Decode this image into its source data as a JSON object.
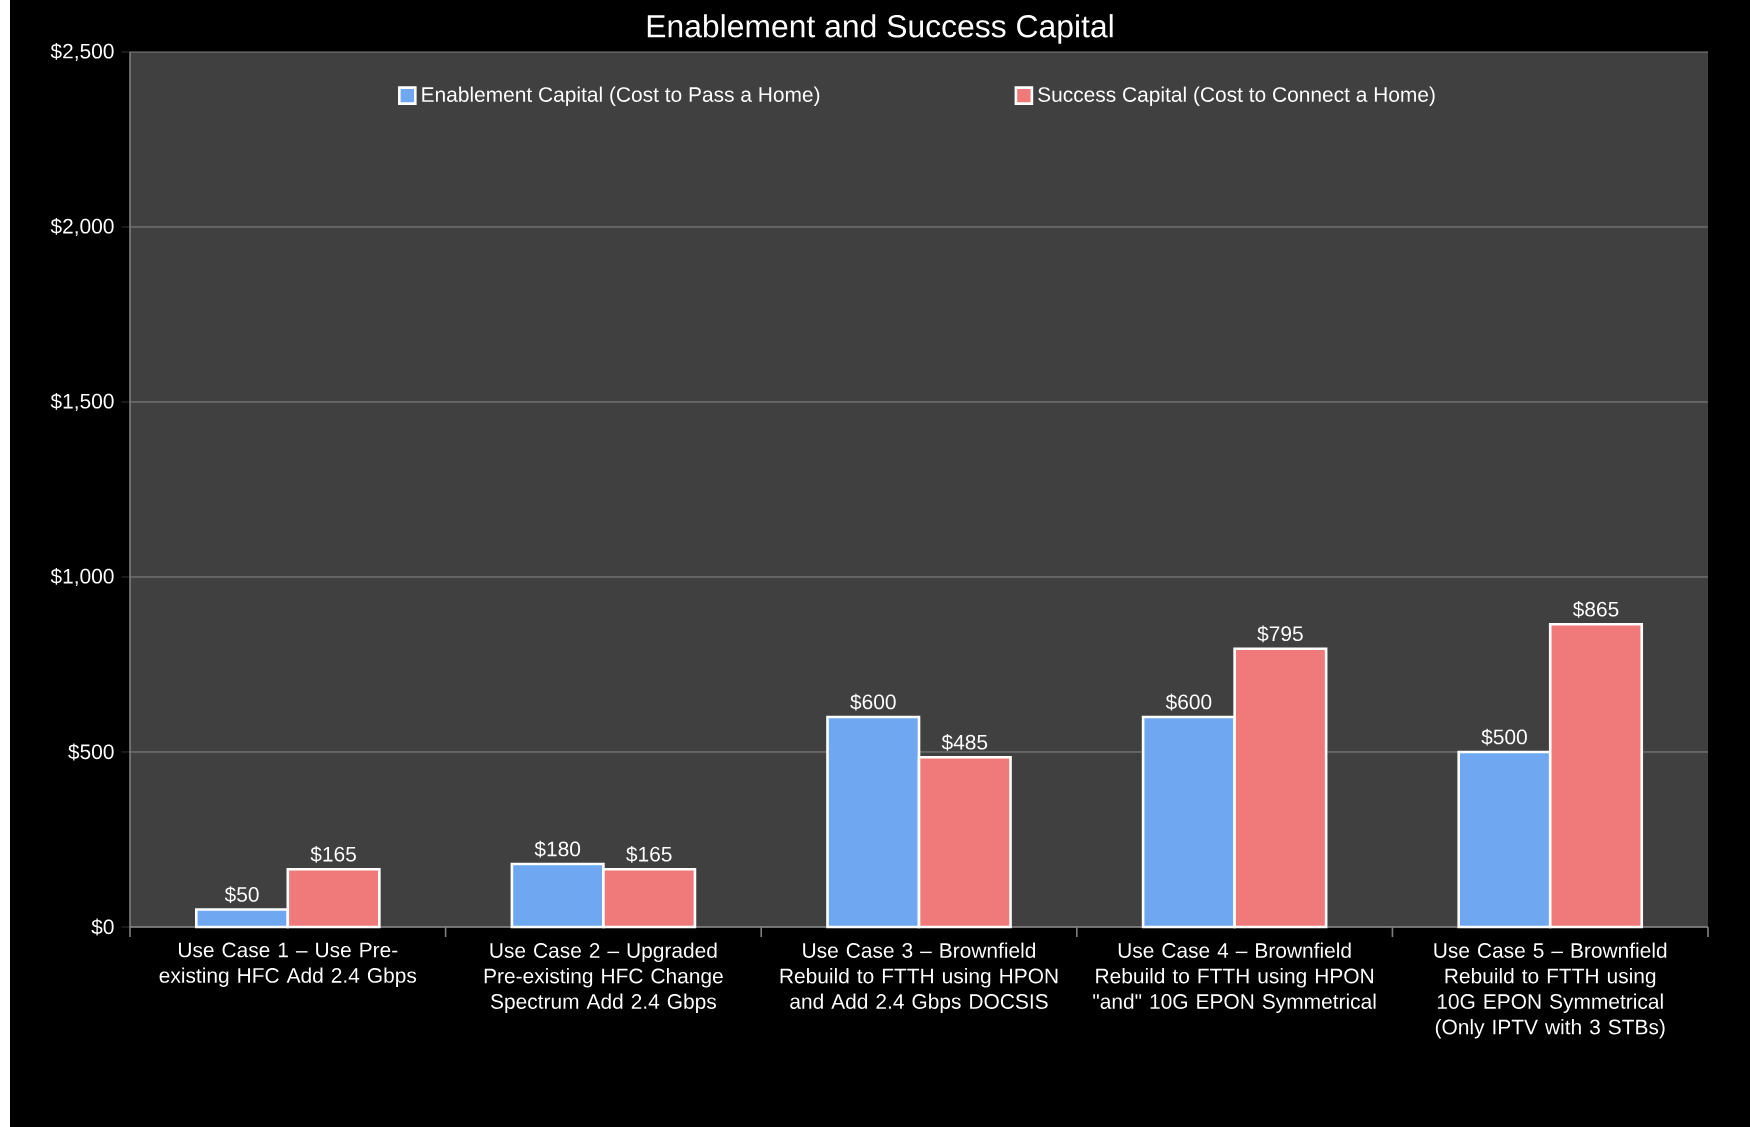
{
  "chart_data": {
    "type": "bar",
    "title": "Enablement and Success Capital",
    "categories": [
      "Use Case 1 – Use Pre-existing HFC Add 2.4 Gbps",
      "Use Case 2 – Upgraded Pre-existing HFC Change Spectrum Add 2.4 Gbps",
      "Use Case 3 – Brownfield Rebuild to FTTH using HPON and Add 2.4 Gbps DOCSIS",
      "Use Case 4 – Brownfield Rebuild to FTTH using HPON \"and\" 10G EPON Symmetrical",
      "Use Case 5 – Brownfield Rebuild to FTTH using 10G EPON Symmetrical (Only IPTV with 3 STBs)"
    ],
    "series": [
      {
        "name": "Enablement Capital (Cost to Pass a Home)",
        "color": "#6fa8f0",
        "values": [
          50,
          180,
          600,
          600,
          500
        ],
        "value_labels": [
          "$50",
          "$180",
          "$600",
          "$600",
          "$500"
        ]
      },
      {
        "name": "Success Capital (Cost to Connect a Home)",
        "color": "#f07a7a",
        "values": [
          165,
          165,
          485,
          795,
          865
        ],
        "value_labels": [
          "$165",
          "$165",
          "$485",
          "$795",
          "$865"
        ]
      }
    ],
    "ylim": [
      0,
      2500
    ],
    "yticks": [
      {
        "value": 0,
        "label": "$0"
      },
      {
        "value": 500,
        "label": "$500"
      },
      {
        "value": 1000,
        "label": "$1,000"
      },
      {
        "value": 1500,
        "label": "$1,500"
      },
      {
        "value": 2000,
        "label": "$2,000"
      },
      {
        "value": 2500,
        "label": "$2,500"
      }
    ],
    "grid": "y",
    "legend": "top"
  }
}
